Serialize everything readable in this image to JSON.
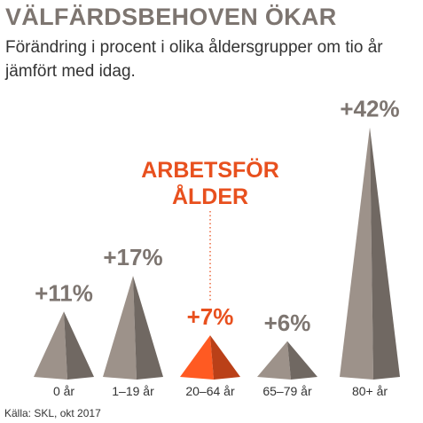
{
  "chart_data": {
    "type": "pyramid",
    "title": "VÄLFÄRDSBEHOVEN ÖKAR",
    "subtitle": "Förändring i procent i olika åldersgrupper om tio år jämfört med idag.",
    "categories": [
      "0 år",
      "1–19 år",
      "20–64 år",
      "65–79 år",
      "80+ år"
    ],
    "values": [
      11,
      17,
      7,
      6,
      42
    ],
    "value_labels": [
      "+11%",
      "+17%",
      "+7%",
      "+6%",
      "+42%"
    ],
    "colors": [
      "#8c827b",
      "#8c827b",
      "#e8501e",
      "#8c827b",
      "#8c827b"
    ],
    "annotation": {
      "lines": [
        "ARBETSFÖR",
        "ÅLDER"
      ],
      "category": 2,
      "color": "#e8501e"
    },
    "source": "Källa: SKL, okt 2017"
  }
}
